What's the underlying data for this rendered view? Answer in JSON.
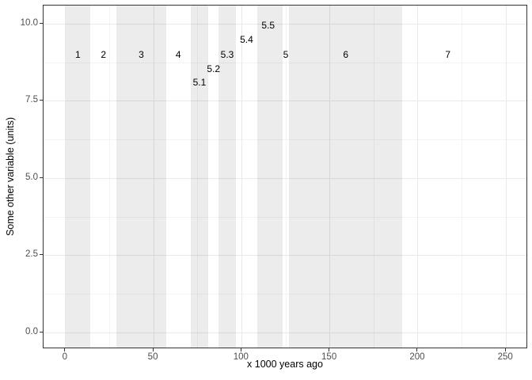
{
  "chart_data": {
    "type": "area",
    "subtype": "vertical-shaded-band-annotation",
    "description": "ggplot2 theme_bw style plot of marine-isotope-stage-like shaded time bands with stage labels; no data series plotted",
    "title": "",
    "xlabel": "x 1000 years ago",
    "ylabel": "Some other variable (units)",
    "x_domain": [
      -12.5,
      262.5
    ],
    "y_domain": [
      -0.53,
      10.6
    ],
    "x_ticks": [
      0,
      50,
      100,
      150,
      200,
      250
    ],
    "x_tick_labels": [
      "0",
      "50",
      "100",
      "150",
      "200",
      "250"
    ],
    "y_ticks": [
      0,
      2.5,
      5,
      7.5,
      10
    ],
    "y_tick_labels": [
      "0.0",
      "2.5",
      "5.0",
      "7.5",
      "10.0"
    ],
    "x_minor_ticks": [
      25,
      75,
      125,
      175,
      225
    ],
    "y_minor_ticks": [
      1.25,
      3.75,
      6.25,
      8.75
    ],
    "grid": "major and minor, light gray",
    "legend": "none",
    "stages": [
      {
        "label": "1",
        "start": 0,
        "end": 14,
        "shaded": true,
        "label_x": 7,
        "label_y": 9.0
      },
      {
        "label": "2",
        "start": 14,
        "end": 29,
        "shaded": false,
        "label_x": 21.5,
        "label_y": 9.0
      },
      {
        "label": "3",
        "start": 29,
        "end": 57,
        "shaded": true,
        "label_x": 43,
        "label_y": 9.0
      },
      {
        "label": "4",
        "start": 57,
        "end": 71,
        "shaded": false,
        "label_x": 64,
        "label_y": 9.0
      },
      {
        "label": "5.1",
        "start": 71,
        "end": 81,
        "shaded": true,
        "label_x": 76,
        "label_y": 8.1
      },
      {
        "label": "5.2",
        "start": 81,
        "end": 87,
        "shaded": false,
        "label_x": 84,
        "label_y": 8.55
      },
      {
        "label": "5.3",
        "start": 87,
        "end": 96.5,
        "shaded": true,
        "label_x": 91.75,
        "label_y": 9.0
      },
      {
        "label": "5.4",
        "start": 96.5,
        "end": 109,
        "shaded": false,
        "label_x": 102.75,
        "label_y": 9.5
      },
      {
        "label": "5.5",
        "start": 109,
        "end": 123,
        "shaded": true,
        "label_x": 115,
        "label_y": 9.95
      },
      {
        "label": "5",
        "start": 123,
        "end": 127,
        "shaded": false,
        "label_x": 125,
        "label_y": 9.0
      },
      {
        "label": "6",
        "start": 127,
        "end": 191,
        "shaded": true,
        "label_x": 159,
        "label_y": 9.0
      },
      {
        "label": "7",
        "start": 191,
        "end": 243,
        "shaded": false,
        "label_x": 217,
        "label_y": 9.0
      }
    ],
    "colors": {
      "background": "#ffffff",
      "band_fill_rgba": "rgba(0,0,0,0.075)",
      "band_fill_effective": "#ececec",
      "grid_major": "#e9e9e9",
      "grid_minor": "#f3f3f3",
      "panel_border": "#333333",
      "tick_mark": "#333333",
      "tick_label": "#4d4d4d",
      "stage_label": "#000000",
      "axis_title": "#000000"
    }
  }
}
